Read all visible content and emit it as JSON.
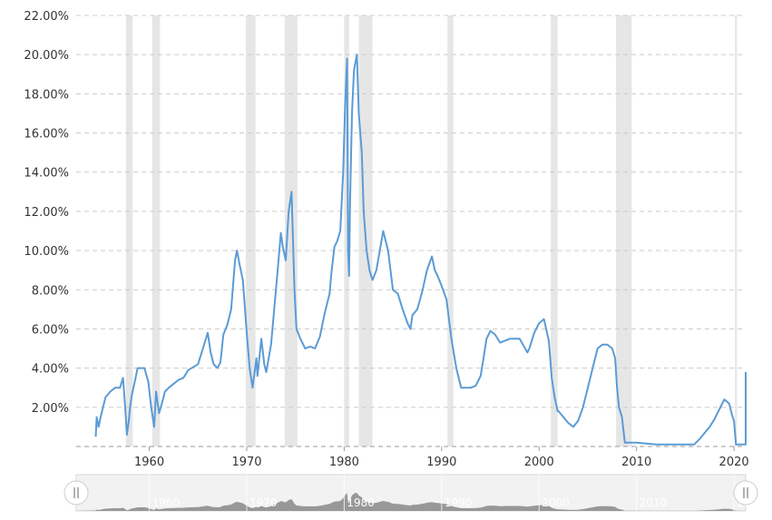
{
  "colors": {
    "line": "#5b9bd5",
    "recession": "#e6e6e6",
    "grid": "#cccccc",
    "navigator_bg": "#f2f2f2",
    "navigator_area": "#888888",
    "handle": "#ffffff"
  },
  "chart_data": {
    "type": "line",
    "xlim": [
      1952.5,
      2021.2
    ],
    "ylim": [
      0,
      22
    ],
    "y_ticks": [
      "2.00%",
      "4.00%",
      "6.00%",
      "8.00%",
      "10.00%",
      "12.00%",
      "14.00%",
      "16.00%",
      "18.00%",
      "20.00%",
      "22.00%"
    ],
    "y_tick_values": [
      2,
      4,
      6,
      8,
      10,
      12,
      14,
      16,
      18,
      20,
      22
    ],
    "x_ticks": [
      "1960",
      "1970",
      "1980",
      "1990",
      "2000",
      "2010",
      "2020"
    ],
    "x_tick_values": [
      1960,
      1970,
      1980,
      1990,
      2000,
      2010,
      2020
    ],
    "grid": true,
    "recessions": [
      [
        1957.6,
        1958.3
      ],
      [
        1960.3,
        1961.1
      ],
      [
        1969.9,
        1970.9
      ],
      [
        1973.9,
        1975.2
      ],
      [
        1980.0,
        1980.5
      ],
      [
        1981.5,
        1982.9
      ],
      [
        1990.6,
        1991.2
      ],
      [
        2001.2,
        2001.9
      ],
      [
        2007.9,
        2009.5
      ],
      [
        2020.1,
        2020.3
      ]
    ],
    "series": [
      {
        "x": [
          1954.5,
          1954.6,
          1954.8,
          1955.0,
          1955.5,
          1956.0,
          1956.5,
          1957.0,
          1957.3,
          1957.5,
          1957.7,
          1957.9,
          1958.0,
          1958.2,
          1958.5,
          1958.8,
          1959.0,
          1959.5,
          1959.9,
          1960.2,
          1960.5,
          1960.7,
          1961.0,
          1961.3,
          1961.6,
          1962.0,
          1963.0,
          1963.5,
          1964.0,
          1965.0,
          1965.5,
          1966.0,
          1966.3,
          1966.6,
          1967.0,
          1967.3,
          1967.6,
          1968.0,
          1968.4,
          1968.8,
          1969.0,
          1969.3,
          1969.6,
          1970.0,
          1970.3,
          1970.6,
          1971.0,
          1971.1,
          1971.5,
          1971.8,
          1972.0,
          1972.5,
          1973.0,
          1973.5,
          1973.7,
          1974.0,
          1974.3,
          1974.6,
          1974.9,
          1975.1,
          1975.5,
          1976.0,
          1976.5,
          1977.0,
          1977.5,
          1978.0,
          1978.5,
          1978.7,
          1979.0,
          1979.3,
          1979.6,
          1979.9,
          1980.1,
          1980.3,
          1980.4,
          1980.5,
          1980.6,
          1980.8,
          1981.0,
          1981.3,
          1981.5,
          1981.8,
          1982.0,
          1982.3,
          1982.6,
          1982.9,
          1983.0,
          1983.3,
          1984.0,
          1984.5,
          1985.0,
          1985.5,
          1986.0,
          1986.5,
          1986.8,
          1987.0,
          1987.5,
          1988.0,
          1988.5,
          1989.0,
          1989.3,
          1989.6,
          1990.0,
          1990.5,
          1991.0,
          1991.5,
          1992.0,
          1993.0,
          1993.5,
          1994.0,
          1994.3,
          1994.6,
          1995.0,
          1995.5,
          1996.0,
          1997.0,
          1998.0,
          1998.8,
          1999.0,
          1999.5,
          2000.0,
          2000.5,
          2001.0,
          2001.3,
          2001.6,
          2001.9,
          2002.0,
          2003.0,
          2003.5,
          2004.0,
          2004.5,
          2005.0,
          2005.5,
          2006.0,
          2006.5,
          2007.0,
          2007.5,
          2007.8,
          2008.0,
          2008.2,
          2008.5,
          2008.8,
          2009.0,
          2010.0,
          2012.0,
          2014.0,
          2015.9,
          2016.5,
          2017.0,
          2017.5,
          2018.0,
          2018.5,
          2019.0,
          2019.5,
          2019.8,
          2020.0,
          2020.2,
          2020.5,
          2021.0,
          2021.5,
          2022.0,
          2022.2
        ],
        "values": [
          0.5,
          1.5,
          1.0,
          1.5,
          2.5,
          2.8,
          3.0,
          3.0,
          3.5,
          2.2,
          0.6,
          1.3,
          1.9,
          2.6,
          3.3,
          4.0,
          4.0,
          4.0,
          3.3,
          2.0,
          1.0,
          2.8,
          1.7,
          2.2,
          2.8,
          3.0,
          3.4,
          3.5,
          3.9,
          4.2,
          5.0,
          5.8,
          4.8,
          4.2,
          4.0,
          4.3,
          5.7,
          6.2,
          7.0,
          9.5,
          10.0,
          9.2,
          8.5,
          5.8,
          4.0,
          3.0,
          4.5,
          3.6,
          5.5,
          4.2,
          3.8,
          5.2,
          8.0,
          10.9,
          10.2,
          9.5,
          12.0,
          13.0,
          8.0,
          6.0,
          5.5,
          5.0,
          5.1,
          5.0,
          5.6,
          6.8,
          7.8,
          8.9,
          10.2,
          10.5,
          11.0,
          14.0,
          17.5,
          19.8,
          10.0,
          8.7,
          12.5,
          17.0,
          19.2,
          20.0,
          17.0,
          15.0,
          12.0,
          10.0,
          9.0,
          8.5,
          8.6,
          9.0,
          11.0,
          10.0,
          8.0,
          7.8,
          7.0,
          6.3,
          6.0,
          6.7,
          7.0,
          7.9,
          9.0,
          9.7,
          9.0,
          8.7,
          8.2,
          7.5,
          5.5,
          4.0,
          3.0,
          3.0,
          3.1,
          3.6,
          4.5,
          5.5,
          5.9,
          5.7,
          5.3,
          5.5,
          5.5,
          4.8,
          5.0,
          5.8,
          6.3,
          6.5,
          5.4,
          3.5,
          2.5,
          1.8,
          1.8,
          1.2,
          1.0,
          1.3,
          2.0,
          3.0,
          4.0,
          5.0,
          5.2,
          5.2,
          5.0,
          4.5,
          3.0,
          2.0,
          1.5,
          0.2,
          0.2,
          0.2,
          0.1,
          0.1,
          0.1,
          0.4,
          0.7,
          1.0,
          1.4,
          1.9,
          2.4,
          2.2,
          1.6,
          1.3,
          0.1,
          0.1,
          0.1,
          0.1,
          2.8,
          3.8
        ]
      }
    ]
  }
}
